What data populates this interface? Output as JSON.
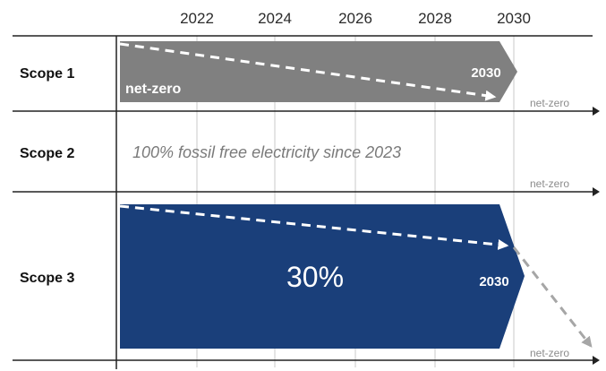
{
  "years": [
    "2022",
    "2024",
    "2026",
    "2028",
    "2030"
  ],
  "rows": [
    {
      "label": "Scope 1",
      "bar_color": "#808080",
      "bar_end_label": "2030",
      "bar_text": "net-zero",
      "axis_label": "net-zero"
    },
    {
      "label": "Scope 2",
      "note": "100% fossil free electricity since 2023",
      "axis_label": "net-zero"
    },
    {
      "label": "Scope 3",
      "bar_color": "#1a3f7a",
      "bar_end_label": "2030",
      "reduction": "30%",
      "axis_label": "net-zero"
    }
  ],
  "colors": {
    "axis": "#222222",
    "gridline": "#c8c8c8",
    "dashed_arrow": "#ffffff",
    "extension_arrow": "#a6a6a6"
  }
}
